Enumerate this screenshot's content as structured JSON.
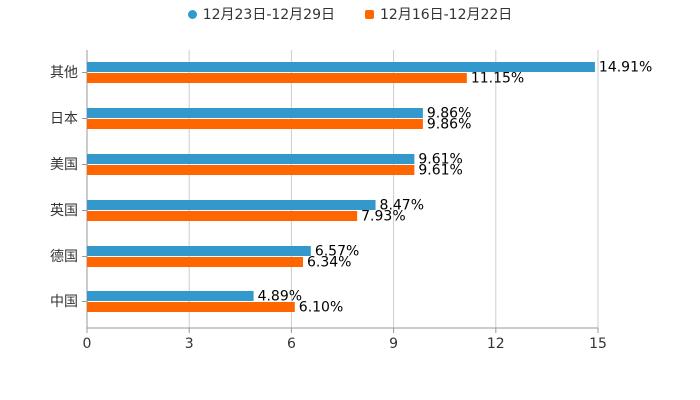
{
  "chart_data": {
    "type": "bar",
    "orientation": "horizontal",
    "categories": [
      "其他",
      "日本",
      "美国",
      "英国",
      "德国",
      "中国"
    ],
    "series": [
      {
        "name": "12月23日-12月29日",
        "color": "#3399cc",
        "values": [
          14.91,
          9.86,
          9.61,
          8.47,
          6.57,
          4.89
        ],
        "labels": [
          "14.91%",
          "9.86%",
          "9.61%",
          "8.47%",
          "6.57%",
          "4.89%"
        ]
      },
      {
        "name": "12月16日-12月22日",
        "color": "#ff6600",
        "values": [
          11.15,
          9.86,
          9.61,
          7.93,
          6.34,
          6.1
        ],
        "labels": [
          "11.15%",
          "9.86%",
          "9.61%",
          "7.93%",
          "6.34%",
          "6.10%"
        ]
      }
    ],
    "xlim": [
      0,
      15
    ],
    "xticks": [
      "0",
      "3",
      "6",
      "9",
      "12",
      "15"
    ],
    "grid": true,
    "legend_position": "top-center"
  },
  "colors": {
    "grid": "#cccccc",
    "axis": "#999999",
    "text": "#333333"
  }
}
